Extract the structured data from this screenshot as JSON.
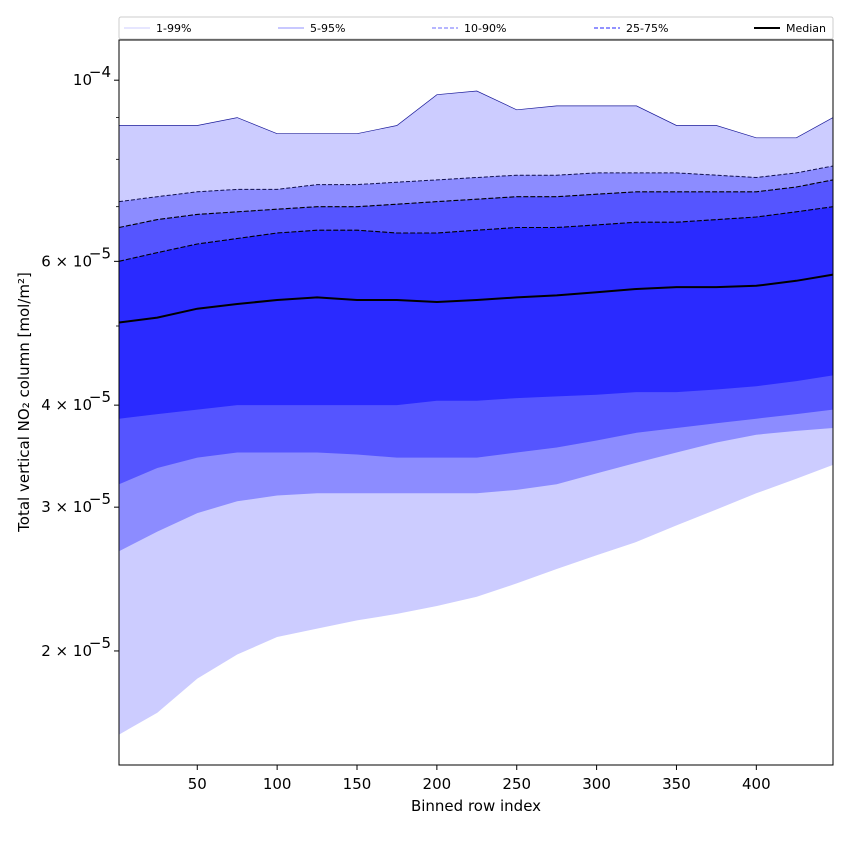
{
  "chart_data": {
    "type": "area",
    "xlabel": "Binned row index",
    "ylabel": "Total vertical NO₂ column [mol/m²]",
    "yscale": "log",
    "xlim": [
      1,
      448
    ],
    "ylim": [
      1.45e-05,
      0.000112
    ],
    "x_ticks": [
      50,
      100,
      150,
      200,
      250,
      300,
      350,
      400
    ],
    "y_ticks": [
      {
        "value": 0.0001,
        "label": "10",
        "exp": "−4"
      },
      {
        "value": 6e-05,
        "label": "6 × 10",
        "exp": "−5"
      },
      {
        "value": 4e-05,
        "label": "4 × 10",
        "exp": "−5"
      },
      {
        "value": 3e-05,
        "label": "3 × 10",
        "exp": "−5"
      },
      {
        "value": 2e-05,
        "label": "2 × 10",
        "exp": "−5"
      }
    ],
    "y_minor_ticks": [
      7e-05,
      8e-05,
      9e-05,
      5e-05
    ],
    "grid": false,
    "legend_position": "top",
    "legend": [
      {
        "label": "1-99%",
        "style": "solid",
        "color": "#d6d6ff"
      },
      {
        "label": "5-95%",
        "style": "solid",
        "color": "#a8a8ff"
      },
      {
        "label": "10-90%",
        "style": "dashed",
        "color": "#8a8aff"
      },
      {
        "label": "25-75%",
        "style": "dashed",
        "color": "#5050ff"
      },
      {
        "label": "Median",
        "style": "solid",
        "color": "#000000"
      }
    ],
    "x": [
      1,
      25,
      50,
      75,
      100,
      125,
      150,
      175,
      200,
      225,
      250,
      275,
      300,
      325,
      350,
      375,
      400,
      425,
      448
    ],
    "bands": [
      {
        "name": "1-99%",
        "color": "#ccccff",
        "upper": [
          8.8e-05,
          8.8e-05,
          8.8e-05,
          9e-05,
          8.6e-05,
          8.6e-05,
          8.6e-05,
          8.8e-05,
          9.6e-05,
          9.7e-05,
          9.2e-05,
          9.3e-05,
          9.3e-05,
          9.3e-05,
          8.8e-05,
          8.8e-05,
          8.5e-05,
          8.5e-05,
          9e-05
        ],
        "lower": [
          1.58e-05,
          1.68e-05,
          1.85e-05,
          1.98e-05,
          2.08e-05,
          2.13e-05,
          2.18e-05,
          2.22e-05,
          2.27e-05,
          2.33e-05,
          2.42e-05,
          2.52e-05,
          2.62e-05,
          2.72e-05,
          2.85e-05,
          2.98e-05,
          3.12e-05,
          3.25e-05,
          3.38e-05
        ]
      },
      {
        "name": "5-95%",
        "color": "#8c8cff",
        "upper": [
          7.1e-05,
          7.2e-05,
          7.3e-05,
          7.35e-05,
          7.35e-05,
          7.45e-05,
          7.45e-05,
          7.5e-05,
          7.55e-05,
          7.6e-05,
          7.65e-05,
          7.65e-05,
          7.7e-05,
          7.7e-05,
          7.7e-05,
          7.65e-05,
          7.6e-05,
          7.7e-05,
          7.85e-05
        ]
      },
      {
        "name": "10-90%",
        "color": "#5555ff",
        "upper": [
          6.6e-05,
          6.75e-05,
          6.85e-05,
          6.9e-05,
          6.95e-05,
          7e-05,
          7e-05,
          7.05e-05,
          7.1e-05,
          7.15e-05,
          7.2e-05,
          7.2e-05,
          7.25e-05,
          7.3e-05,
          7.3e-05,
          7.3e-05,
          7.3e-05,
          7.4e-05,
          7.55e-05
        ]
      },
      {
        "name": "25-75%",
        "color": "#2a2aff",
        "upper": [
          6e-05,
          6.15e-05,
          6.3e-05,
          6.4e-05,
          6.5e-05,
          6.55e-05,
          6.55e-05,
          6.5e-05,
          6.5e-05,
          6.55e-05,
          6.6e-05,
          6.6e-05,
          6.65e-05,
          6.7e-05,
          6.7e-05,
          6.75e-05,
          6.8e-05,
          6.9e-05,
          7e-05
        ],
        "lower": [
          3.85e-05,
          3.9e-05,
          3.95e-05,
          4e-05,
          4e-05,
          4e-05,
          4e-05,
          4e-05,
          4.05e-05,
          4.05e-05,
          4.08e-05,
          4.1e-05,
          4.12e-05,
          4.15e-05,
          4.15e-05,
          4.18e-05,
          4.22e-05,
          4.28e-05,
          4.35e-05
        ]
      }
    ],
    "lower_boundaries": [
      {
        "name": "10-90%",
        "values": [
          3.2e-05,
          3.35e-05,
          3.45e-05,
          3.5e-05,
          3.5e-05,
          3.5e-05,
          3.48e-05,
          3.45e-05,
          3.45e-05,
          3.45e-05,
          3.5e-05,
          3.55e-05,
          3.62e-05,
          3.7e-05,
          3.75e-05,
          3.8e-05,
          3.85e-05,
          3.9e-05,
          3.95e-05
        ]
      },
      {
        "name": "5-95%",
        "values": [
          2.65e-05,
          2.8e-05,
          2.95e-05,
          3.05e-05,
          3.1e-05,
          3.12e-05,
          3.12e-05,
          3.12e-05,
          3.12e-05,
          3.12e-05,
          3.15e-05,
          3.2e-05,
          3.3e-05,
          3.4e-05,
          3.5e-05,
          3.6e-05,
          3.68e-05,
          3.72e-05,
          3.75e-05
        ]
      }
    ],
    "median": [
      5.05e-05,
      5.12e-05,
      5.25e-05,
      5.32e-05,
      5.38e-05,
      5.42e-05,
      5.38e-05,
      5.38e-05,
      5.35e-05,
      5.38e-05,
      5.42e-05,
      5.45e-05,
      5.5e-05,
      5.55e-05,
      5.58e-05,
      5.58e-05,
      5.6e-05,
      5.68e-05,
      5.78e-05
    ]
  }
}
